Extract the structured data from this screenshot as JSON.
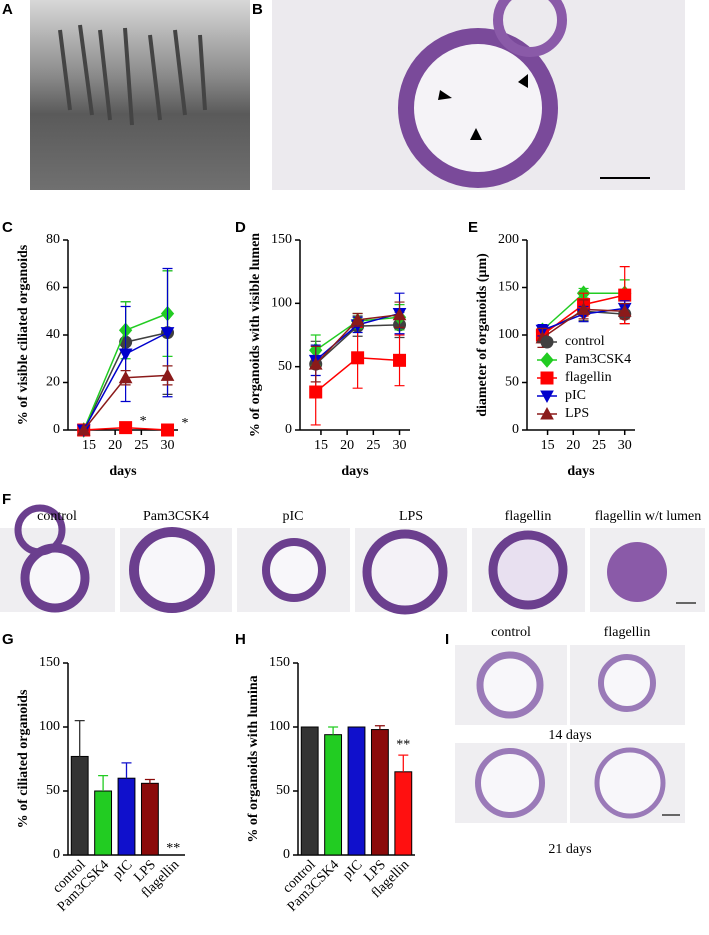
{
  "chart_data": [
    {
      "type": "line",
      "ylabel": "% of visible ciliated organoids",
      "xlabel": "days",
      "x": [
        14,
        22,
        30
      ],
      "xlim": [
        11,
        32
      ],
      "xticks": [
        15,
        20,
        25,
        30
      ],
      "ylim": [
        0,
        80
      ],
      "yticks": [
        0,
        20,
        40,
        60,
        80
      ],
      "annotations": [
        "*",
        "*"
      ],
      "series": [
        {
          "name": "control",
          "color": "#404040",
          "marker": "circle",
          "values": [
            0,
            37,
            41
          ],
          "errors": [
            0,
            17,
            26
          ]
        },
        {
          "name": "Pam3CSK4",
          "color": "#22cc22",
          "marker": "diamond",
          "values": [
            0,
            42,
            49
          ],
          "errors": [
            0,
            12,
            18
          ]
        },
        {
          "name": "flagellin",
          "color": "#ff0000",
          "marker": "square",
          "values": [
            0,
            1,
            0
          ],
          "errors": [
            0,
            1,
            0
          ]
        },
        {
          "name": "pIC",
          "color": "#0000cc",
          "marker": "triangle-down",
          "values": [
            0,
            32,
            41
          ],
          "errors": [
            0,
            20,
            27
          ]
        },
        {
          "name": "LPS",
          "color": "#8b1a1a",
          "marker": "triangle-up",
          "values": [
            0,
            22,
            23
          ],
          "errors": [
            0,
            3,
            4
          ]
        }
      ]
    },
    {
      "type": "line",
      "ylabel": "% of organoids with visible lumen",
      "xlabel": "days",
      "x": [
        14,
        22,
        30
      ],
      "xlim": [
        11,
        32
      ],
      "xticks": [
        15,
        20,
        25,
        30
      ],
      "ylim": [
        0,
        150
      ],
      "yticks": [
        0,
        50,
        100,
        150
      ],
      "series": [
        {
          "name": "control",
          "color": "#404040",
          "marker": "circle",
          "values": [
            52,
            82,
            83
          ],
          "errors": [
            18,
            8,
            10
          ]
        },
        {
          "name": "Pam3CSK4",
          "color": "#22cc22",
          "marker": "diamond",
          "values": [
            63,
            86,
            89
          ],
          "errors": [
            12,
            6,
            10
          ]
        },
        {
          "name": "flagellin",
          "color": "#ff0000",
          "marker": "square",
          "values": [
            30,
            57,
            55
          ],
          "errors": [
            26,
            24,
            20
          ]
        },
        {
          "name": "pIC",
          "color": "#0000cc",
          "marker": "triangle-down",
          "values": [
            55,
            83,
            92
          ],
          "errors": [
            12,
            6,
            16
          ]
        },
        {
          "name": "LPS",
          "color": "#8b1a1a",
          "marker": "triangle-up",
          "values": [
            52,
            87,
            91
          ],
          "errors": [
            14,
            5,
            10
          ]
        }
      ]
    },
    {
      "type": "line",
      "ylabel": "diameter of organoids (μm)",
      "xlabel": "days",
      "x": [
        14,
        22,
        30
      ],
      "xlim": [
        11,
        32
      ],
      "xticks": [
        15,
        20,
        25,
        30
      ],
      "ylim": [
        0,
        200
      ],
      "yticks": [
        0,
        50,
        100,
        150,
        200
      ],
      "legend": "lower right",
      "series": [
        {
          "name": "control",
          "color": "#404040",
          "marker": "circle",
          "values": [
            103,
            125,
            122
          ],
          "errors": [
            6,
            10,
            10
          ]
        },
        {
          "name": "Pam3CSK4",
          "color": "#22cc22",
          "marker": "diamond",
          "values": [
            105,
            144,
            144
          ],
          "errors": [
            5,
            5,
            14
          ]
        },
        {
          "name": "flagellin",
          "color": "#ff0000",
          "marker": "square",
          "values": [
            100,
            132,
            142
          ],
          "errors": [
            8,
            12,
            30
          ]
        },
        {
          "name": "pIC",
          "color": "#0000cc",
          "marker": "triangle-down",
          "values": [
            105,
            122,
            128
          ],
          "errors": [
            6,
            8,
            8
          ]
        },
        {
          "name": "LPS",
          "color": "#8b1a1a",
          "marker": "triangle-up",
          "values": [
            97,
            127,
            125
          ],
          "errors": [
            10,
            10,
            8
          ]
        }
      ]
    },
    {
      "type": "bar",
      "ylabel": "% of ciliated organoids",
      "categories": [
        "control",
        "Pam3CSK4",
        "pIC",
        "LPS",
        "flagellin"
      ],
      "values": [
        77,
        50,
        60,
        56,
        0
      ],
      "errors": [
        28,
        12,
        12,
        3,
        0
      ],
      "colors": [
        "#333333",
        "#22cc22",
        "#1010cc",
        "#8b0a0a",
        "#ff1010"
      ],
      "ylim": [
        0,
        150
      ],
      "yticks": [
        0,
        50,
        100,
        150
      ],
      "annotations": [
        "**"
      ]
    },
    {
      "type": "bar",
      "ylabel": "% of organoids with lumina",
      "categories": [
        "control",
        "Pam3CSK4",
        "pIC",
        "LPS",
        "flagellin"
      ],
      "values": [
        100,
        94,
        100,
        98,
        65
      ],
      "errors": [
        0,
        6,
        0,
        3,
        13
      ],
      "colors": [
        "#333333",
        "#22cc22",
        "#1010cc",
        "#8b0a0a",
        "#ff1010"
      ],
      "ylim": [
        0,
        150
      ],
      "yticks": [
        0,
        50,
        100,
        150
      ],
      "annotations": [
        "**"
      ]
    }
  ],
  "panel_letters": [
    "A",
    "B",
    "C",
    "D",
    "E",
    "F",
    "G",
    "H",
    "I"
  ],
  "f_labels": [
    "control",
    "Pam3CSK4",
    "pIC",
    "LPS",
    "flagellin",
    "flagellin w/t lumen"
  ],
  "i_labels": {
    "columns": [
      "control",
      "flagellin"
    ],
    "rows": [
      "14 days",
      "21 days"
    ]
  }
}
